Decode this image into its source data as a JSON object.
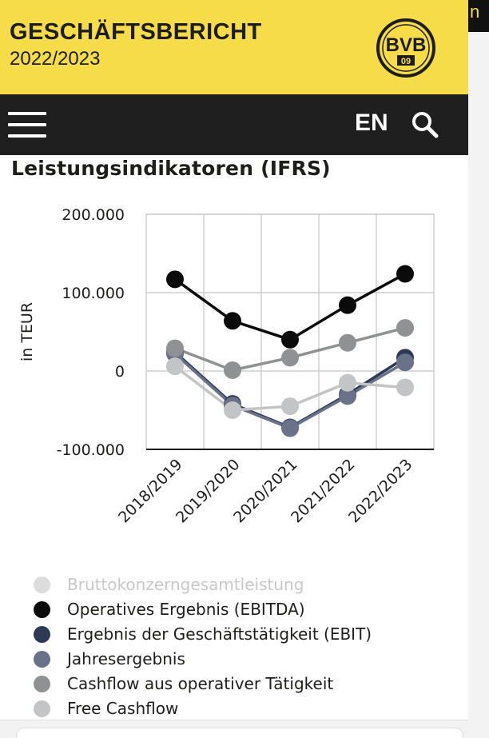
{
  "header": {
    "title": "GESCHÄFTSBERICHT",
    "subtitle": "2022/2023",
    "logo_text": "BVB",
    "logo_number": "09"
  },
  "corner_glyph": "n",
  "nav": {
    "lang_label": "EN"
  },
  "page_title": "Leistungsindikatoren (IFRS)",
  "colors": {
    "brand_yellow": "#f7dc4a",
    "nav_bg": "#1f1f1f"
  },
  "chart_data": {
    "type": "line",
    "categories": [
      "2018/2019",
      "2019/2020",
      "2020/2021",
      "2021/2022",
      "2022/2023"
    ],
    "ylabel": "in TEUR",
    "ylim": [
      -100000,
      200000
    ],
    "yticks": [
      200000,
      100000,
      0,
      -100000
    ],
    "ytick_labels": [
      "200.000",
      "100.000",
      "0",
      "-100.000"
    ],
    "grid": true,
    "legend_position": "bottom",
    "series": [
      {
        "name": "Bruttokonzerngesamtleistung",
        "color": "#cfcfcf",
        "values": [
          6000,
          -50000,
          -45000,
          -15000,
          -21000
        ],
        "visible": false
      },
      {
        "name": "Operatives Ergebnis (EBITDA)",
        "color": "#0b0b0b",
        "values": [
          117000,
          64000,
          40000,
          84000,
          124000
        ],
        "visible": true
      },
      {
        "name": "Ergebnis der Geschäftstätigkeit (EBIT)",
        "color": "#2c3a55",
        "values": [
          24000,
          -42000,
          -72000,
          -30000,
          17000
        ],
        "visible": true
      },
      {
        "name": "Jahresergebnis",
        "color": "#6a7289",
        "values": [
          22000,
          -44000,
          -73000,
          -32000,
          11000
        ],
        "visible": true
      },
      {
        "name": "Cashflow aus operativer Tätigkeit",
        "color": "#8f9193",
        "values": [
          29000,
          1000,
          17000,
          36000,
          55000
        ],
        "visible": true
      },
      {
        "name": "Free Cashflow",
        "color": "#c3c4c6",
        "values": [
          6000,
          -50000,
          -45000,
          -15000,
          -21000
        ],
        "visible": true
      }
    ]
  }
}
